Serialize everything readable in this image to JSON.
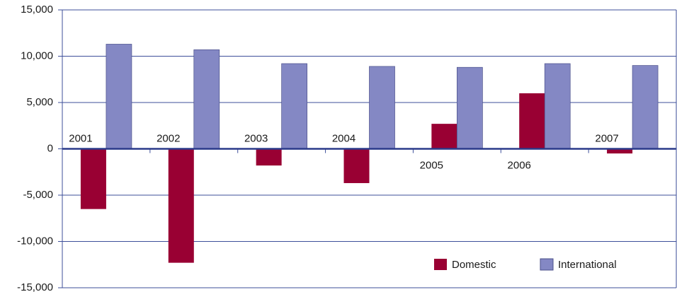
{
  "chart_data": {
    "type": "bar",
    "categories": [
      "2001",
      "2002",
      "2003",
      "2004",
      "2005",
      "2006",
      "2007"
    ],
    "series": [
      {
        "name": "Domestic",
        "color": "#990033",
        "values": [
          -6500,
          -12300,
          -1800,
          -3700,
          2700,
          6000,
          -500
        ]
      },
      {
        "name": "International",
        "color": "#8488c4",
        "values": [
          11300,
          10700,
          9200,
          8900,
          8800,
          9200,
          9000
        ]
      }
    ],
    "ylim": [
      -15000,
      15000
    ],
    "yticks": [
      {
        "value": -15000,
        "label": "-15,000"
      },
      {
        "value": -10000,
        "label": "-10,000"
      },
      {
        "value": -5000,
        "label": "-5,000"
      },
      0,
      {
        "value": 5000,
        "label": "5,000"
      },
      {
        "value": 10000,
        "label": "10,000"
      },
      {
        "value": 15000,
        "label": "15,000"
      }
    ],
    "grid": true,
    "legend": "lower right"
  }
}
